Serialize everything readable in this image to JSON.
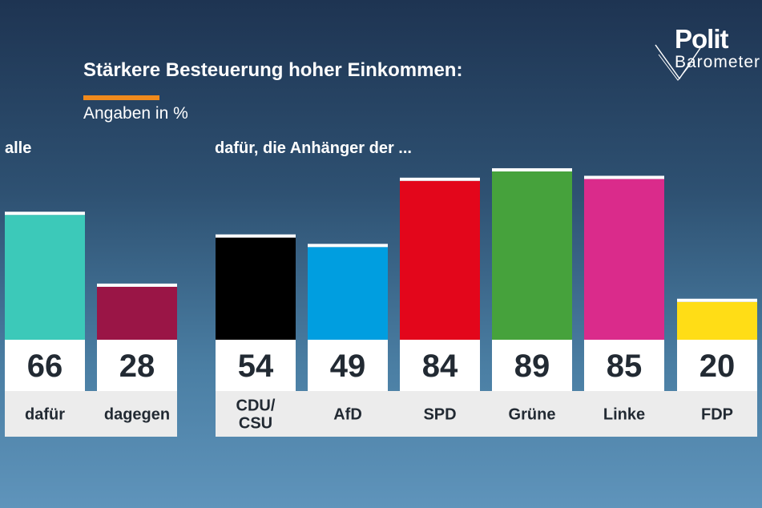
{
  "header": {
    "title": "Stärkere Besteuerung hoher Einkommen:",
    "subtitle": "Angaben in %"
  },
  "logo": {
    "line1": "Polit",
    "line2": "Barometer"
  },
  "colors": {
    "accent": "#f08a1c",
    "label_box": "#ffffff",
    "name_box": "#ececec"
  },
  "chart_data": [
    {
      "type": "bar",
      "group_label": "alle",
      "categories": [
        "dafür",
        "dagegen"
      ],
      "values": [
        66,
        28
      ],
      "colors": [
        "#3cc9b9",
        "#9a1546"
      ],
      "ylim": [
        0,
        100
      ]
    },
    {
      "type": "bar",
      "group_label": "dafür, die Anhänger der ...",
      "categories": [
        "CDU/\nCSU",
        "AfD",
        "SPD",
        "Grüne",
        "Linke",
        "FDP"
      ],
      "values": [
        54,
        49,
        84,
        89,
        85,
        20
      ],
      "colors": [
        "#000000",
        "#009ee0",
        "#e3061b",
        "#46a23c",
        "#da2b8b",
        "#ffdd16"
      ],
      "ylim": [
        0,
        100
      ]
    }
  ]
}
